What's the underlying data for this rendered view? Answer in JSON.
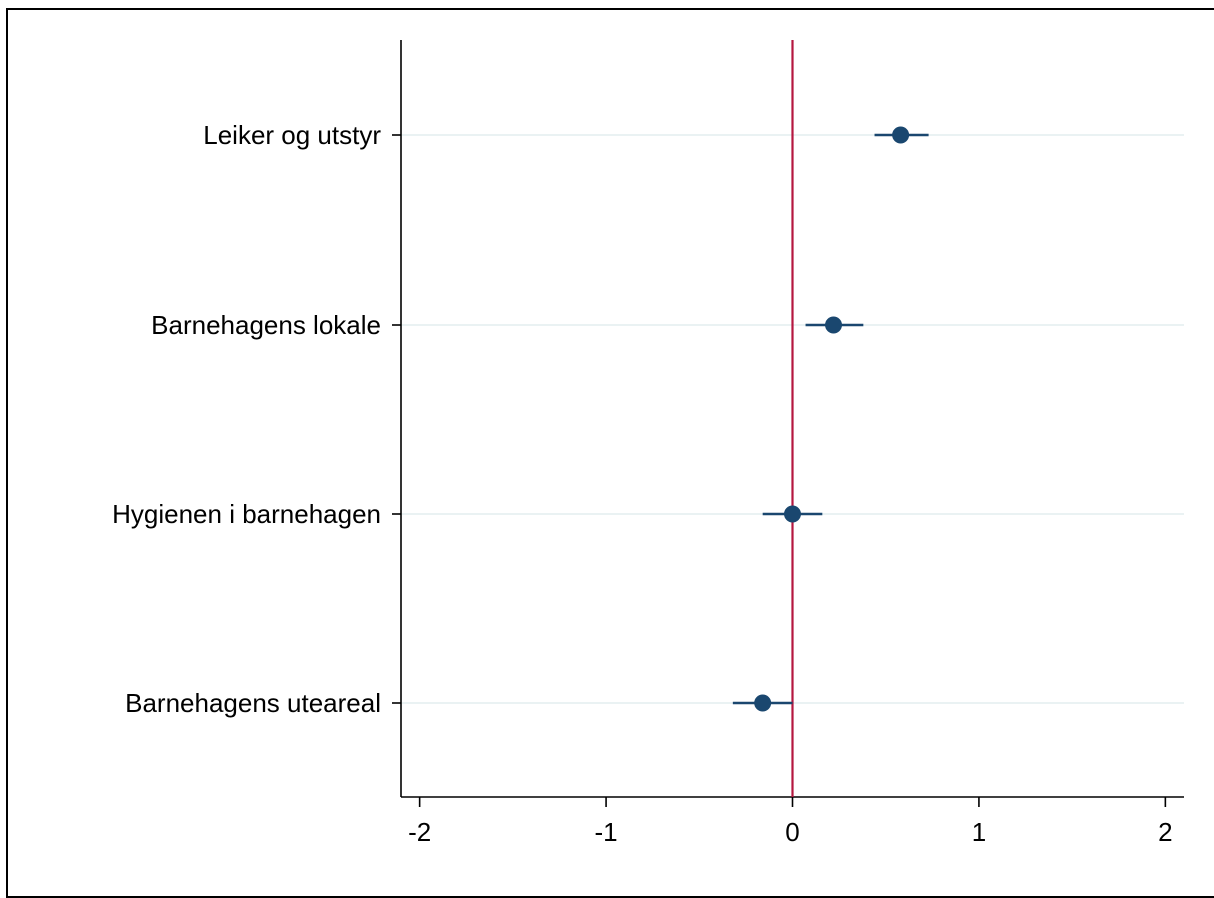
{
  "chart_data": {
    "type": "scatter",
    "subtype": "coefficient-plot",
    "categories": [
      "Leiker og utstyr",
      "Barnehagens lokale",
      "Hygienen i barnehagen",
      "Barnehagens uteareal"
    ],
    "estimates": [
      0.58,
      0.22,
      0.0,
      -0.16
    ],
    "ci_low": [
      0.44,
      0.07,
      -0.16,
      -0.32
    ],
    "ci_high": [
      0.73,
      0.38,
      0.16,
      0.0
    ],
    "xlim": [
      -2.1,
      2.1
    ],
    "xticks": [
      "-2",
      "-1",
      "0",
      "1",
      "2"
    ],
    "xtick_values": [
      -2,
      -1,
      0,
      1,
      2
    ],
    "reference_line_x": 0,
    "title": "",
    "xlabel": "",
    "ylabel": "",
    "grid": "horizontal",
    "legend": "none",
    "colors": {
      "marker": "#1a476f",
      "ci": "#1a476f",
      "reference_line": "#b5173f",
      "gridline": "#eaf2f3",
      "axis": "#000000"
    }
  }
}
